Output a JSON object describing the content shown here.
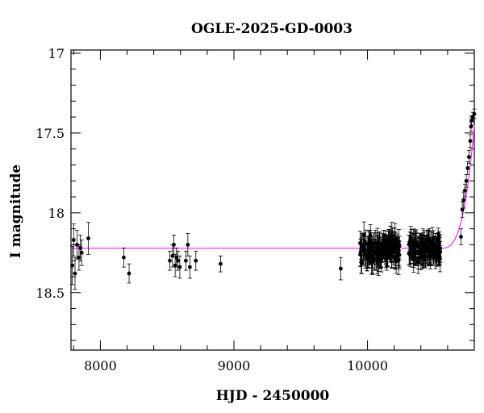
{
  "chart_data": {
    "type": "scatter",
    "title": "OGLE-2025-GD-0003",
    "xlabel": "HJD - 2450000",
    "ylabel": "I magnitude",
    "xlim": [
      7780,
      10800
    ],
    "ylim": [
      18.86,
      16.98
    ],
    "y_inverted": true,
    "grid": false,
    "x_ticks": [
      8000,
      9000,
      10000
    ],
    "x_tick_labels": [
      "8000",
      "9000",
      "10000"
    ],
    "y_ticks": [
      17,
      17.5,
      18,
      18.5
    ],
    "y_tick_labels": [
      "17",
      "17.5",
      "18",
      "18.5"
    ],
    "series": [
      {
        "type": "points",
        "color": "#000000",
        "points": [
          {
            "x": 7790,
            "y": 18.33,
            "err": 0.12
          },
          {
            "x": 7800,
            "y": 18.17,
            "err": 0.1
          },
          {
            "x": 7810,
            "y": 18.38,
            "err": 0.1
          },
          {
            "x": 7825,
            "y": 18.2,
            "err": 0.09
          },
          {
            "x": 7840,
            "y": 18.28,
            "err": 0.08
          },
          {
            "x": 7850,
            "y": 18.22,
            "err": 0.08
          },
          {
            "x": 7860,
            "y": 18.25,
            "err": 0.08
          },
          {
            "x": 7910,
            "y": 18.16,
            "err": 0.1
          },
          {
            "x": 8175,
            "y": 18.28,
            "err": 0.06
          },
          {
            "x": 8215,
            "y": 18.38,
            "err": 0.06
          },
          {
            "x": 8520,
            "y": 18.3,
            "err": 0.06
          },
          {
            "x": 8540,
            "y": 18.27,
            "err": 0.07
          },
          {
            "x": 8550,
            "y": 18.2,
            "err": 0.06
          },
          {
            "x": 8560,
            "y": 18.33,
            "err": 0.07
          },
          {
            "x": 8570,
            "y": 18.28,
            "err": 0.06
          },
          {
            "x": 8580,
            "y": 18.3,
            "err": 0.06
          },
          {
            "x": 8595,
            "y": 18.34,
            "err": 0.07
          },
          {
            "x": 8640,
            "y": 18.3,
            "err": 0.06
          },
          {
            "x": 8655,
            "y": 18.2,
            "err": 0.07
          },
          {
            "x": 8670,
            "y": 18.34,
            "err": 0.07
          },
          {
            "x": 8715,
            "y": 18.3,
            "err": 0.06
          },
          {
            "x": 8900,
            "y": 18.32,
            "err": 0.05
          },
          {
            "x": 9800,
            "y": 18.35,
            "err": 0.07
          },
          {
            "x": 10700,
            "y": 18.15,
            "err": 0.05
          },
          {
            "x": 10710,
            "y": 17.98,
            "err": 0.05
          },
          {
            "x": 10720,
            "y": 17.92,
            "err": 0.05
          },
          {
            "x": 10730,
            "y": 17.86,
            "err": 0.04
          },
          {
            "x": 10740,
            "y": 17.8,
            "err": 0.04
          },
          {
            "x": 10750,
            "y": 17.72,
            "err": 0.04
          },
          {
            "x": 10760,
            "y": 17.65,
            "err": 0.04
          },
          {
            "x": 10770,
            "y": 17.55,
            "err": 0.04
          },
          {
            "x": 10775,
            "y": 17.46,
            "err": 0.03
          },
          {
            "x": 10780,
            "y": 17.42,
            "err": 0.03
          },
          {
            "x": 10790,
            "y": 17.4,
            "err": 0.03
          },
          {
            "x": 10800,
            "y": 17.38,
            "err": 0.03
          }
        ],
        "clusters": [
          {
            "x_range": [
              9945,
              10240
            ],
            "y_center": 18.23,
            "y_spread": 0.12,
            "err": 0.07,
            "count": 150
          },
          {
            "x_range": [
              10310,
              10550
            ],
            "y_center": 18.23,
            "y_spread": 0.09,
            "err": 0.07,
            "count": 130
          }
        ]
      },
      {
        "type": "model",
        "color": "#ff33ff",
        "baseline": 18.222,
        "rise_start": 10540,
        "rise_end": 10800,
        "peak": 17.45
      }
    ]
  }
}
